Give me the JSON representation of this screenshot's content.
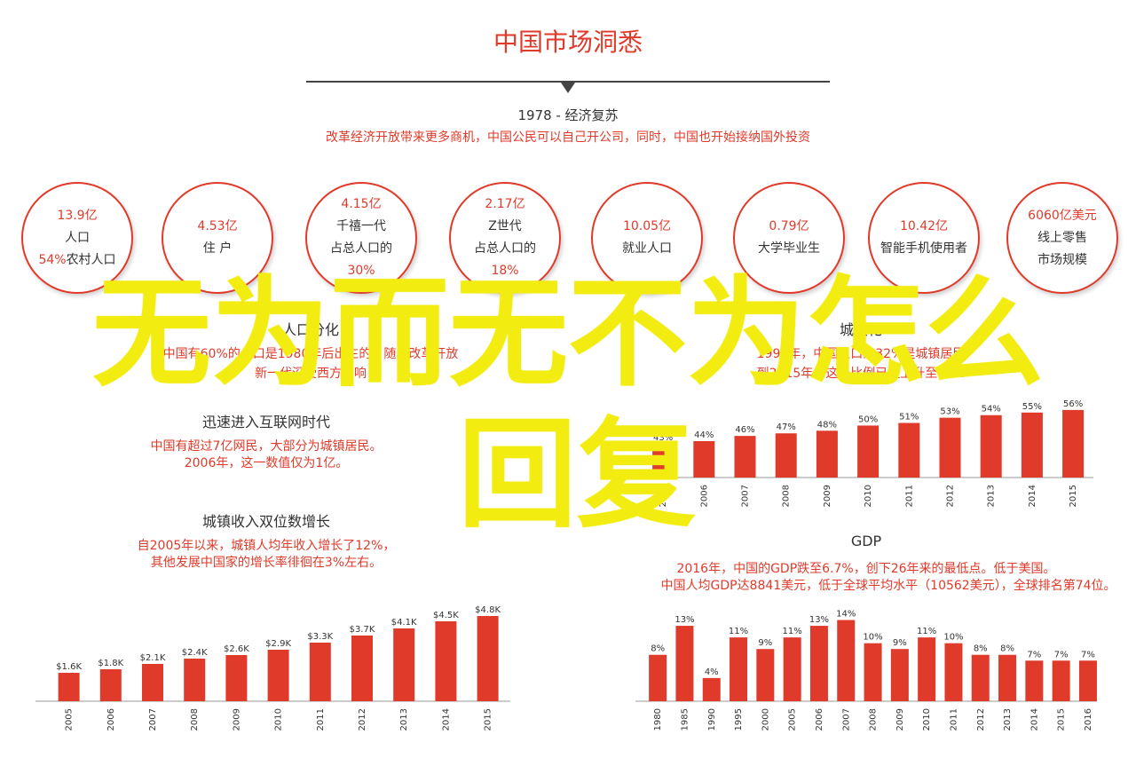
{
  "header": {
    "title": "中国市场洞悉",
    "subtitle_year": "1978 - 经济复苏",
    "subtitle_desc": "改革经济开放带来更多商机，中国公民可以自己开公司，同时，中国也开始接纳国外投资"
  },
  "stats": [
    {
      "lines": [
        "13.9亿",
        "人口"
      ],
      "rich_line": {
        "highlight": "54%",
        "text": "农村人口"
      }
    },
    {
      "lines": [
        "4.53亿",
        "住 户"
      ]
    },
    {
      "lines": [
        "4.15亿",
        "千禧一代",
        "占总人口的",
        "30%"
      ]
    },
    {
      "lines": [
        "2.17亿",
        "Z世代",
        "占总人口的",
        "18%"
      ]
    },
    {
      "lines": [
        "10.05亿",
        "就业人口"
      ]
    },
    {
      "lines": [
        "0.79亿",
        "大学毕业生"
      ]
    },
    {
      "lines": [
        "10.42亿",
        "智能手机使用者"
      ]
    },
    {
      "lines": [
        "6060亿美元",
        "线上零售",
        "市场规模"
      ]
    }
  ],
  "sections": {
    "population": {
      "title": "人口分化",
      "desc_1": "中国有60%的人口是1980年后出生的，随着改革开放",
      "desc_2": "新一代深受西方影响"
    },
    "urbanization": {
      "title": "城镇化",
      "desc_1": "1997年，中国人口的32%是城镇居民",
      "desc_2": "到2015年，这一比例已经上升至56%"
    },
    "internet": {
      "title": "迅速进入互联网时代",
      "desc_1": "中国有超过7亿网民，大部分为城镇居民。",
      "desc_2": "2006年，这一数值仅为1亿。"
    },
    "income": {
      "title": "城镇收入双位数增长",
      "desc_1": "自2005年以来，城镇人均年收入增长了12%，",
      "desc_2": "其他发展中国家的增长率徘徊在3%左右。"
    },
    "gdp": {
      "title": "GDP",
      "desc_1": "2016年，中国的GDP跌至6.7%，创下26年来的最低点。低于美国。",
      "desc_2": "中国人均GDP达8841美元，低于全球平均水平（10562美元），全球排名第74位。"
    }
  },
  "overlay": {
    "line1": "无为而无不为怎么",
    "line2": "回复"
  },
  "colors": {
    "accent": "#e03a2a",
    "overlay": "#f2ec11",
    "text": "#333333"
  },
  "chart_data": [
    {
      "type": "bar",
      "categories": [
        "2005",
        "2006",
        "2007",
        "2008",
        "2009",
        "2010",
        "2011",
        "2012",
        "2013",
        "2014",
        "2015"
      ],
      "values": [
        1.6,
        1.8,
        2.1,
        2.4,
        2.6,
        2.9,
        3.3,
        3.7,
        4.1,
        4.5,
        4.8
      ],
      "labels": [
        "$1.6K",
        "$1.8K",
        "$2.1K",
        "$2.4K",
        "$2.6K",
        "$2.9K",
        "$3.3K",
        "$3.7K",
        "$4.1K",
        "$4.5K",
        "$4.8K"
      ],
      "title": "城镇收入双位数增长",
      "xlabel": "",
      "ylabel": "",
      "ylim": [
        0,
        5.0
      ]
    },
    {
      "type": "bar",
      "categories": [
        "2005",
        "2006",
        "2007",
        "2008",
        "2009",
        "2010",
        "2011",
        "2012",
        "2013",
        "2014",
        "2015"
      ],
      "values": [
        43,
        44,
        46,
        47,
        48,
        50,
        51,
        53,
        54,
        55,
        56
      ],
      "labels": [
        "43%",
        "44%",
        "46%",
        "47%",
        "48%",
        "50%",
        "51%",
        "53%",
        "54%",
        "55%",
        "56%"
      ],
      "title": "城镇化",
      "xlabel": "",
      "ylabel": "",
      "ylim": [
        30,
        58
      ]
    },
    {
      "type": "bar",
      "categories": [
        "1980",
        "1985",
        "1990",
        "1995",
        "2000",
        "2005",
        "2006",
        "2007",
        "2008",
        "2009",
        "2010",
        "2011",
        "2012",
        "2013",
        "2014",
        "2015",
        "2016"
      ],
      "values": [
        8,
        13,
        4,
        11,
        9,
        11,
        13,
        14,
        10,
        9,
        11,
        10,
        8,
        8,
        7,
        7,
        7
      ],
      "labels": [
        "8%",
        "13%",
        "4%",
        "11%",
        "9%",
        "11%",
        "13%",
        "14%",
        "10%",
        "9%",
        "11%",
        "10%",
        "8%",
        "8%",
        "7%",
        "7%",
        "7%"
      ],
      "title": "GDP",
      "xlabel": "",
      "ylabel": "",
      "ylim": [
        0,
        15
      ]
    }
  ]
}
